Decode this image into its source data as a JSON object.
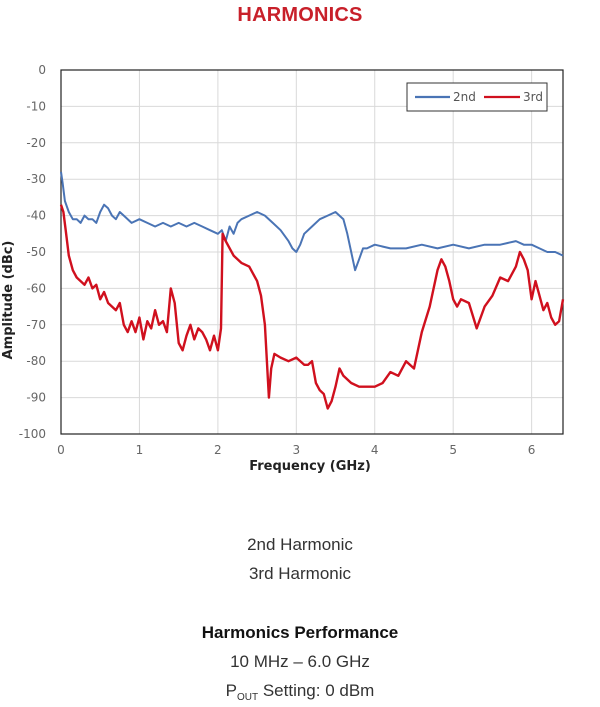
{
  "page": {
    "title": "HARMONICS",
    "caption_line1": "2nd Harmonic",
    "caption_line2": "3rd Harmonic",
    "performance_title": "Harmonics Performance",
    "freq_range": "10 MHz – 6.0 GHz",
    "pout_label": "P",
    "pout_subscript": "OUT",
    "pout_setting": " Setting: 0 dBm"
  },
  "colors": {
    "title": "#c8202a",
    "series_2nd": "#4a74b5",
    "series_3rd": "#d0101e"
  },
  "chart_data": {
    "type": "line",
    "title": "",
    "xlabel": "Frequency (GHz)",
    "ylabel": "Amplitude (dBc)",
    "xlim": [
      0,
      6.4
    ],
    "ylim": [
      -100,
      0
    ],
    "x_ticks": [
      "0",
      "1",
      "2",
      "3",
      "4",
      "5",
      "6"
    ],
    "y_ticks": [
      "0",
      "-10",
      "-20",
      "-30",
      "-40",
      "-50",
      "-60",
      "-70",
      "-80",
      "-90",
      "-100"
    ],
    "grid": true,
    "legend_position": "top-right",
    "series": [
      {
        "name": "2nd",
        "color": "#4a74b5",
        "x": [
          0.0,
          0.02,
          0.05,
          0.1,
          0.15,
          0.2,
          0.25,
          0.3,
          0.35,
          0.4,
          0.45,
          0.5,
          0.55,
          0.6,
          0.65,
          0.7,
          0.75,
          0.8,
          0.9,
          1.0,
          1.1,
          1.2,
          1.3,
          1.4,
          1.5,
          1.6,
          1.7,
          1.8,
          1.9,
          2.0,
          2.05,
          2.1,
          2.15,
          2.2,
          2.25,
          2.3,
          2.4,
          2.5,
          2.6,
          2.7,
          2.8,
          2.9,
          2.95,
          3.0,
          3.05,
          3.1,
          3.2,
          3.3,
          3.4,
          3.5,
          3.6,
          3.65,
          3.7,
          3.75,
          3.8,
          3.85,
          3.9,
          4.0,
          4.2,
          4.4,
          4.6,
          4.8,
          5.0,
          5.2,
          5.4,
          5.6,
          5.8,
          5.9,
          6.0,
          6.1,
          6.2,
          6.3,
          6.4
        ],
        "y": [
          -28,
          -31,
          -36,
          -39,
          -41,
          -41,
          -42,
          -40,
          -41,
          -41,
          -42,
          -39,
          -37,
          -38,
          -40,
          -41,
          -39,
          -40,
          -42,
          -41,
          -42,
          -43,
          -42,
          -43,
          -42,
          -43,
          -42,
          -43,
          -44,
          -45,
          -44,
          -47,
          -43,
          -45,
          -42,
          -41,
          -40,
          -39,
          -40,
          -42,
          -44,
          -47,
          -49,
          -50,
          -48,
          -45,
          -43,
          -41,
          -40,
          -39,
          -41,
          -45,
          -50,
          -55,
          -52,
          -49,
          -49,
          -48,
          -49,
          -49,
          -48,
          -49,
          -48,
          -49,
          -48,
          -48,
          -47,
          -48,
          -48,
          -49,
          -50,
          -50,
          -51
        ]
      },
      {
        "name": "3rd",
        "color": "#d0101e",
        "x": [
          0.0,
          0.03,
          0.06,
          0.1,
          0.15,
          0.2,
          0.25,
          0.3,
          0.35,
          0.4,
          0.45,
          0.5,
          0.55,
          0.6,
          0.65,
          0.7,
          0.75,
          0.8,
          0.85,
          0.9,
          0.95,
          1.0,
          1.05,
          1.1,
          1.15,
          1.2,
          1.25,
          1.3,
          1.35,
          1.4,
          1.45,
          1.5,
          1.55,
          1.6,
          1.65,
          1.7,
          1.75,
          1.8,
          1.85,
          1.9,
          1.95,
          2.0,
          2.04,
          2.06,
          2.1,
          2.2,
          2.3,
          2.4,
          2.5,
          2.55,
          2.6,
          2.65,
          2.68,
          2.72,
          2.8,
          2.9,
          3.0,
          3.1,
          3.15,
          3.2,
          3.25,
          3.3,
          3.35,
          3.4,
          3.45,
          3.5,
          3.55,
          3.6,
          3.7,
          3.8,
          3.9,
          4.0,
          4.1,
          4.2,
          4.3,
          4.4,
          4.5,
          4.6,
          4.7,
          4.8,
          4.85,
          4.9,
          4.95,
          5.0,
          5.05,
          5.1,
          5.2,
          5.3,
          5.4,
          5.5,
          5.6,
          5.7,
          5.8,
          5.85,
          5.9,
          5.95,
          6.0,
          6.05,
          6.1,
          6.15,
          6.2,
          6.25,
          6.3,
          6.35,
          6.4
        ],
        "y": [
          -37,
          -39,
          -44,
          -51,
          -55,
          -57,
          -58,
          -59,
          -57,
          -60,
          -59,
          -63,
          -61,
          -64,
          -65,
          -66,
          -64,
          -70,
          -72,
          -69,
          -72,
          -68,
          -74,
          -69,
          -71,
          -66,
          -70,
          -69,
          -72,
          -60,
          -64,
          -75,
          -77,
          -73,
          -70,
          -74,
          -71,
          -72,
          -74,
          -77,
          -73,
          -77,
          -71,
          -45,
          -47,
          -51,
          -53,
          -54,
          -58,
          -62,
          -70,
          -90,
          -82,
          -78,
          -79,
          -80,
          -79,
          -81,
          -81,
          -80,
          -86,
          -88,
          -89,
          -93,
          -91,
          -87,
          -82,
          -84,
          -86,
          -87,
          -87,
          -87,
          -86,
          -83,
          -84,
          -80,
          -82,
          -72,
          -65,
          -55,
          -52,
          -54,
          -58,
          -63,
          -65,
          -63,
          -64,
          -71,
          -65,
          -62,
          -57,
          -58,
          -54,
          -50,
          -52,
          -55,
          -63,
          -58,
          -62,
          -66,
          -64,
          -68,
          -70,
          -69,
          -63
        ]
      }
    ]
  }
}
